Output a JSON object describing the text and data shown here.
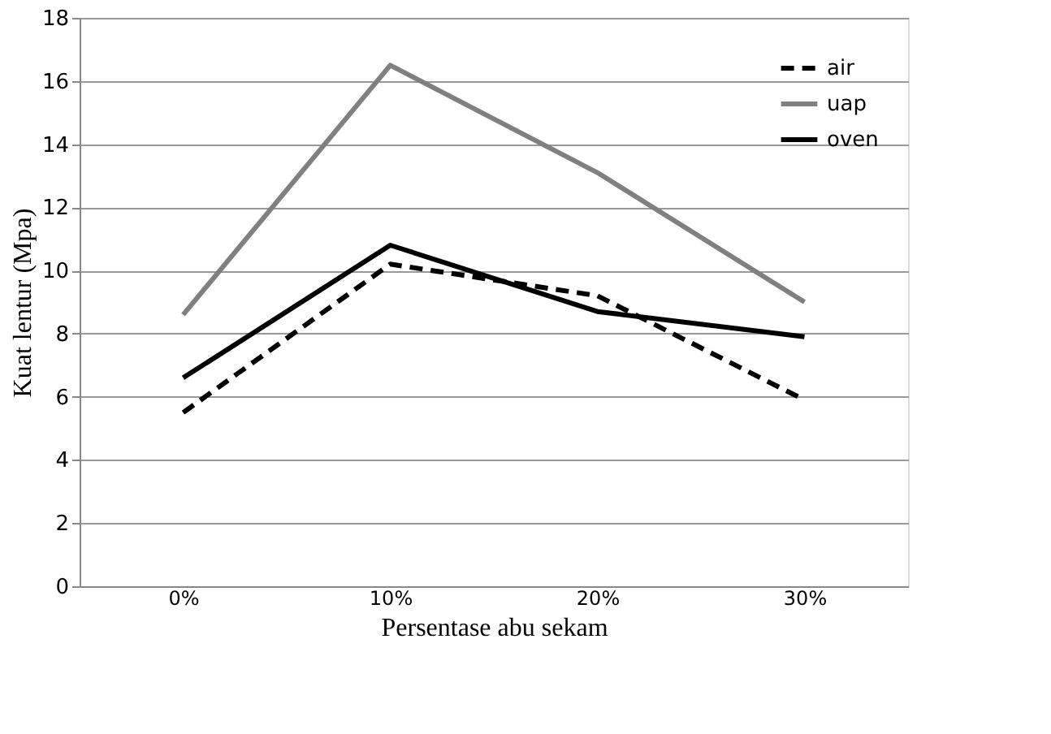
{
  "chart_data": {
    "type": "line",
    "xlabel": "Persentase abu sekam",
    "ylabel": "Kuat lentur (Mpa)",
    "categories": [
      "0%",
      "10%",
      "20%",
      "30%"
    ],
    "series": [
      {
        "name": "air",
        "color": "#000000",
        "line_style": "dashed",
        "values": [
          5.5,
          10.2,
          9.2,
          5.9
        ]
      },
      {
        "name": "uap",
        "color": "#808080",
        "line_style": "solid",
        "values": [
          8.6,
          16.5,
          13.1,
          9.0
        ]
      },
      {
        "name": "oven",
        "color": "#000000",
        "line_style": "solid",
        "values": [
          6.6,
          10.8,
          8.7,
          7.9
        ]
      }
    ],
    "ylim": [
      0,
      18
    ],
    "yticks": [
      0,
      2,
      4,
      6,
      8,
      10,
      12,
      14,
      16,
      18
    ],
    "grid": "y",
    "legend": "top right",
    "marker": "none"
  }
}
